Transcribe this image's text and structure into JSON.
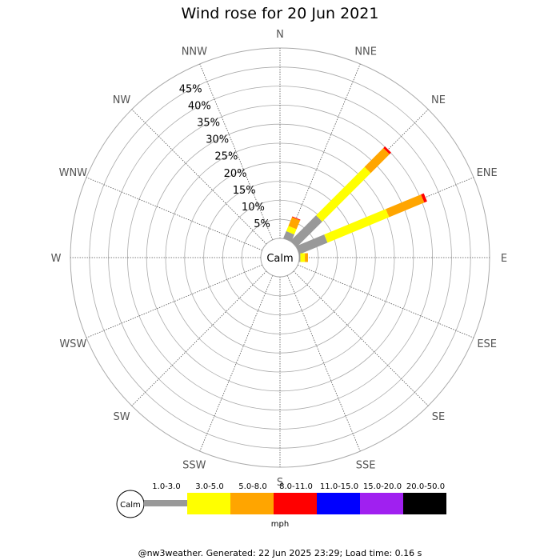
{
  "chart_data": {
    "type": "windrose",
    "title": "Wind rose for 20 Jun 2021",
    "unit": "mph",
    "calm_label": "Calm",
    "directions": [
      "N",
      "NNE",
      "NE",
      "ENE",
      "E",
      "ESE",
      "SE",
      "SSE",
      "S",
      "SSW",
      "SW",
      "WSW",
      "W",
      "WNW",
      "NW",
      "NNW"
    ],
    "ring_labels": [
      "5%",
      "10%",
      "15%",
      "20%",
      "25%",
      "30%",
      "35%",
      "40%",
      "45%"
    ],
    "rmax": 50,
    "speed_bins": [
      {
        "name": "1.0-3.0",
        "color": "#999999"
      },
      {
        "name": "3.0-5.0",
        "color": "#ffff00"
      },
      {
        "name": "5.0-8.0",
        "color": "#ffa500"
      },
      {
        "name": "8.0-11.0",
        "color": "#ff0000"
      },
      {
        "name": "11.0-15.0",
        "color": "#0000ff"
      },
      {
        "name": "15.0-20.0",
        "color": "#a020f0"
      },
      {
        "name": "20.0-50.0",
        "color": "#000000"
      }
    ],
    "series": [
      {
        "direction": "NNE",
        "values": [
          2.0,
          1.5,
          2.5,
          0.2,
          0,
          0,
          0
        ]
      },
      {
        "direction": "NE",
        "values": [
          9.5,
          18.0,
          7.0,
          0.6,
          0,
          0,
          0
        ]
      },
      {
        "direction": "ENE",
        "values": [
          8.0,
          17.5,
          10.0,
          0.8,
          0,
          0,
          0
        ]
      },
      {
        "direction": "E",
        "values": [
          0.3,
          1.2,
          0.8,
          0,
          0,
          0,
          0
        ]
      }
    ]
  },
  "footer": "@nw3weather. Generated: 22 Jun 2025 23:29; Load time: 0.16 s"
}
